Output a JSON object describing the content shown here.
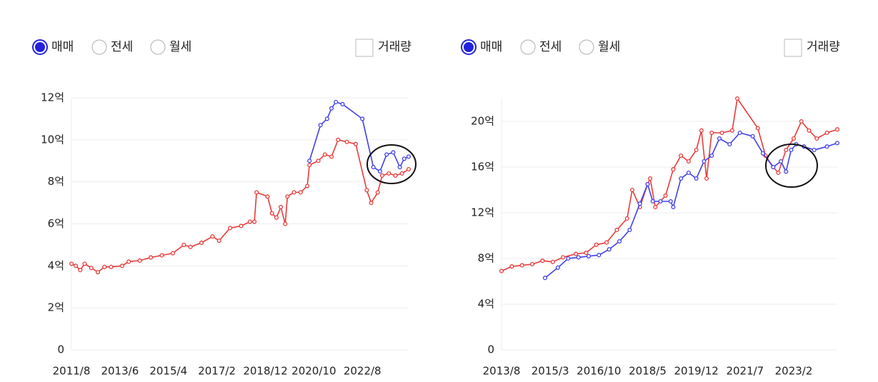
{
  "controls": [
    {
      "options": [
        "매매",
        "전세",
        "월세"
      ],
      "selected": 0,
      "checkbox": "거래량"
    },
    {
      "options": [
        "매매",
        "전세",
        "월세"
      ],
      "selected": 0,
      "checkbox": "거래량"
    }
  ],
  "chart_data": [
    {
      "type": "line",
      "xlim": [
        "2011/8",
        "2024/5"
      ],
      "xticks": [
        "2011/8",
        "2013/6",
        "2015/4",
        "2017/2",
        "2018/12",
        "2020/10",
        "2022/8"
      ],
      "ylim": [
        0,
        12
      ],
      "yticks": [
        0,
        {
          "value": 2,
          "label": "2억"
        },
        {
          "value": 4,
          "label": "4억"
        },
        {
          "value": 6,
          "label": "6억"
        },
        {
          "value": 8,
          "label": "8억"
        },
        {
          "value": 10,
          "label": "10억"
        },
        {
          "value": 12,
          "label": "12억"
        }
      ],
      "grid": true,
      "series": [
        {
          "color": "#e83b3b",
          "x": [
            "2011/8",
            "2011/10",
            "2011/12",
            "2012/2",
            "2012/5",
            "2012/8",
            "2012/11",
            "2013/2",
            "2013/7",
            "2013/10",
            "2014/3",
            "2014/8",
            "2015/1",
            "2015/6",
            "2015/11",
            "2016/2",
            "2016/7",
            "2016/12",
            "2017/3",
            "2017/8",
            "2018/1",
            "2018/5",
            "2018/7",
            "2018/8",
            "2019/1",
            "2019/3",
            "2019/5",
            "2019/7",
            "2019/9",
            "2019/10",
            "2020/1",
            "2020/4",
            "2020/7",
            "2020/8",
            "2020/12",
            "2021/3",
            "2021/6",
            "2021/9",
            "2022/1",
            "2022/5",
            "2022/10",
            "2022/12",
            "2023/3",
            "2023/5",
            "2023/8",
            "2023/11",
            "2024/2",
            "2024/5"
          ],
          "values": [
            4.1,
            4.0,
            3.8,
            4.1,
            3.9,
            3.7,
            3.95,
            3.95,
            4.0,
            4.2,
            4.25,
            4.4,
            4.5,
            4.6,
            5.0,
            4.9,
            5.1,
            5.4,
            5.2,
            5.8,
            5.9,
            6.1,
            6.1,
            7.5,
            7.3,
            6.5,
            6.3,
            6.8,
            6.0,
            7.3,
            7.5,
            7.5,
            7.8,
            8.8,
            9.0,
            9.3,
            9.2,
            10.0,
            9.9,
            9.8,
            7.6,
            7.0,
            7.5,
            8.3,
            8.4,
            8.3,
            8.4,
            8.6
          ]
        },
        {
          "color": "#4141e6",
          "x": [
            "2020/8",
            "2021/1",
            "2021/4",
            "2021/6",
            "2021/8",
            "2021/11",
            "2022/8",
            "2023/1",
            "2023/4",
            "2023/7",
            "2023/10",
            "2024/1",
            "2024/3",
            "2024/5"
          ],
          "values": [
            9.0,
            10.7,
            11.0,
            11.5,
            11.8,
            11.7,
            11.0,
            8.7,
            8.5,
            9.3,
            9.4,
            8.7,
            9.1,
            9.2
          ]
        }
      ]
    },
    {
      "type": "line",
      "xlim": [
        "2013/8",
        "2024/7"
      ],
      "xticks": [
        "2013/8",
        "2015/3",
        "2016/10",
        "2018/5",
        "2019/12",
        "2021/7",
        "2023/2"
      ],
      "ylim": [
        0,
        22
      ],
      "yticks": [
        0,
        {
          "value": 4,
          "label": "4억"
        },
        {
          "value": 8,
          "label": "8억"
        },
        {
          "value": 12,
          "label": "12억"
        },
        {
          "value": 16,
          "label": "16억"
        },
        {
          "value": 20,
          "label": "20억"
        }
      ],
      "grid": true,
      "series": [
        {
          "color": "#e83b3b",
          "x": [
            "2013/8",
            "2013/12",
            "2014/4",
            "2014/8",
            "2014/12",
            "2015/4",
            "2015/8",
            "2016/1",
            "2016/5",
            "2016/9",
            "2017/1",
            "2017/5",
            "2017/9",
            "2017/11",
            "2018/2",
            "2018/5",
            "2018/6",
            "2018/8",
            "2018/12",
            "2019/3",
            "2019/6",
            "2019/9",
            "2019/12",
            "2020/2",
            "2020/4",
            "2020/6",
            "2020/10",
            "2021/2",
            "2021/4",
            "2021/12",
            "2022/3",
            "2022/6",
            "2022/8",
            "2022/11",
            "2023/2",
            "2023/5",
            "2023/8",
            "2023/11",
            "2024/3",
            "2024/7"
          ],
          "values": [
            6.9,
            7.3,
            7.4,
            7.5,
            7.8,
            7.7,
            8.1,
            8.4,
            8.5,
            9.2,
            9.4,
            10.5,
            11.5,
            14.0,
            12.5,
            14.5,
            15.0,
            12.5,
            13.5,
            15.8,
            17.0,
            16.5,
            17.5,
            19.2,
            15.0,
            19.0,
            19.0,
            19.2,
            22.0,
            19.4,
            17.0,
            16.0,
            15.5,
            17.5,
            18.5,
            20.0,
            19.2,
            18.5,
            19.0,
            19.3
          ]
        },
        {
          "color": "#4141e6",
          "x": [
            "2015/1",
            "2015/6",
            "2015/10",
            "2016/2",
            "2016/6",
            "2016/10",
            "2017/2",
            "2017/6",
            "2017/10",
            "2018/2",
            "2018/5",
            "2018/7",
            "2018/10",
            "2019/2",
            "2019/3",
            "2019/6",
            "2019/9",
            "2019/12",
            "2020/3",
            "2020/6",
            "2020/9",
            "2021/1",
            "2021/5",
            "2021/10",
            "2022/2",
            "2022/6",
            "2022/9",
            "2022/11",
            "2023/1",
            "2023/3",
            "2023/6",
            "2023/10",
            "2024/3",
            "2024/7"
          ],
          "values": [
            6.3,
            7.2,
            8.0,
            8.1,
            8.2,
            8.3,
            8.8,
            9.5,
            10.5,
            12.8,
            14.5,
            13.0,
            13.0,
            13.0,
            12.5,
            15.0,
            15.5,
            15.0,
            16.5,
            17.0,
            18.5,
            18.0,
            19.0,
            18.7,
            17.2,
            16.0,
            16.5,
            15.6,
            17.5,
            18.0,
            17.8,
            17.5,
            17.8,
            18.1
          ]
        }
      ]
    }
  ]
}
